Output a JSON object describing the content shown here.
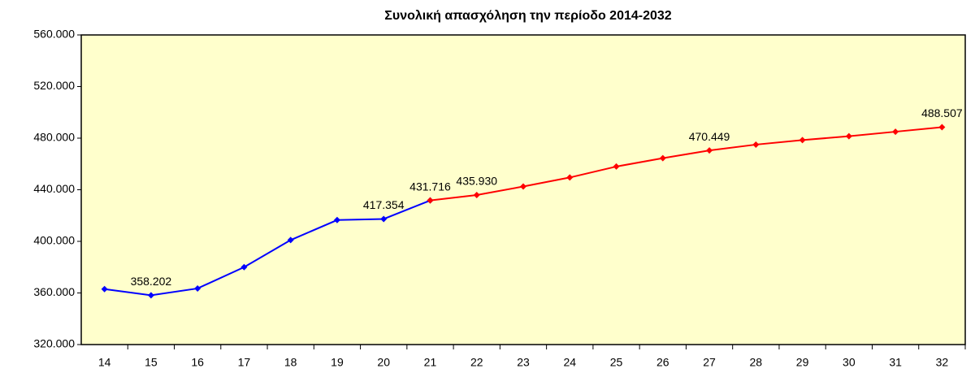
{
  "chart_data": {
    "type": "line",
    "title": "Συνολική απασχόληση την περίοδο 2014-2032",
    "categories": [
      "14",
      "15",
      "16",
      "17",
      "18",
      "19",
      "20",
      "21",
      "22",
      "23",
      "24",
      "25",
      "26",
      "27",
      "28",
      "29",
      "30",
      "31",
      "32"
    ],
    "series": [
      {
        "color": "#0000ff",
        "values": [
          363000,
          358202,
          363500,
          380000,
          401000,
          416500,
          417354,
          431716,
          null,
          null,
          null,
          null,
          null,
          null,
          null,
          null,
          null,
          null,
          null
        ],
        "value_labels": [
          null,
          "358.202",
          null,
          null,
          null,
          null,
          "417.354",
          "431.716",
          null,
          null,
          null,
          null,
          null,
          null,
          null,
          null,
          null,
          null,
          null
        ]
      },
      {
        "color": "#ff0000",
        "values": [
          null,
          null,
          null,
          null,
          null,
          null,
          null,
          431716,
          435930,
          442500,
          449500,
          458000,
          464500,
          470449,
          475000,
          478500,
          481500,
          485000,
          488507
        ],
        "value_labels": [
          null,
          null,
          null,
          null,
          null,
          null,
          null,
          null,
          "435.930",
          null,
          null,
          null,
          null,
          "470.449",
          null,
          null,
          null,
          null,
          "488.507"
        ]
      }
    ],
    "ylim": [
      320000,
      560000
    ],
    "yticks": [
      {
        "value": 320000,
        "label": "320.000"
      },
      {
        "value": 360000,
        "label": "360.000"
      },
      {
        "value": 400000,
        "label": "400.000"
      },
      {
        "value": 440000,
        "label": "440.000"
      },
      {
        "value": 480000,
        "label": "480.000"
      },
      {
        "value": 520000,
        "label": "520.000"
      },
      {
        "value": 560000,
        "label": "560.000"
      }
    ],
    "background": "#ffffcc"
  }
}
